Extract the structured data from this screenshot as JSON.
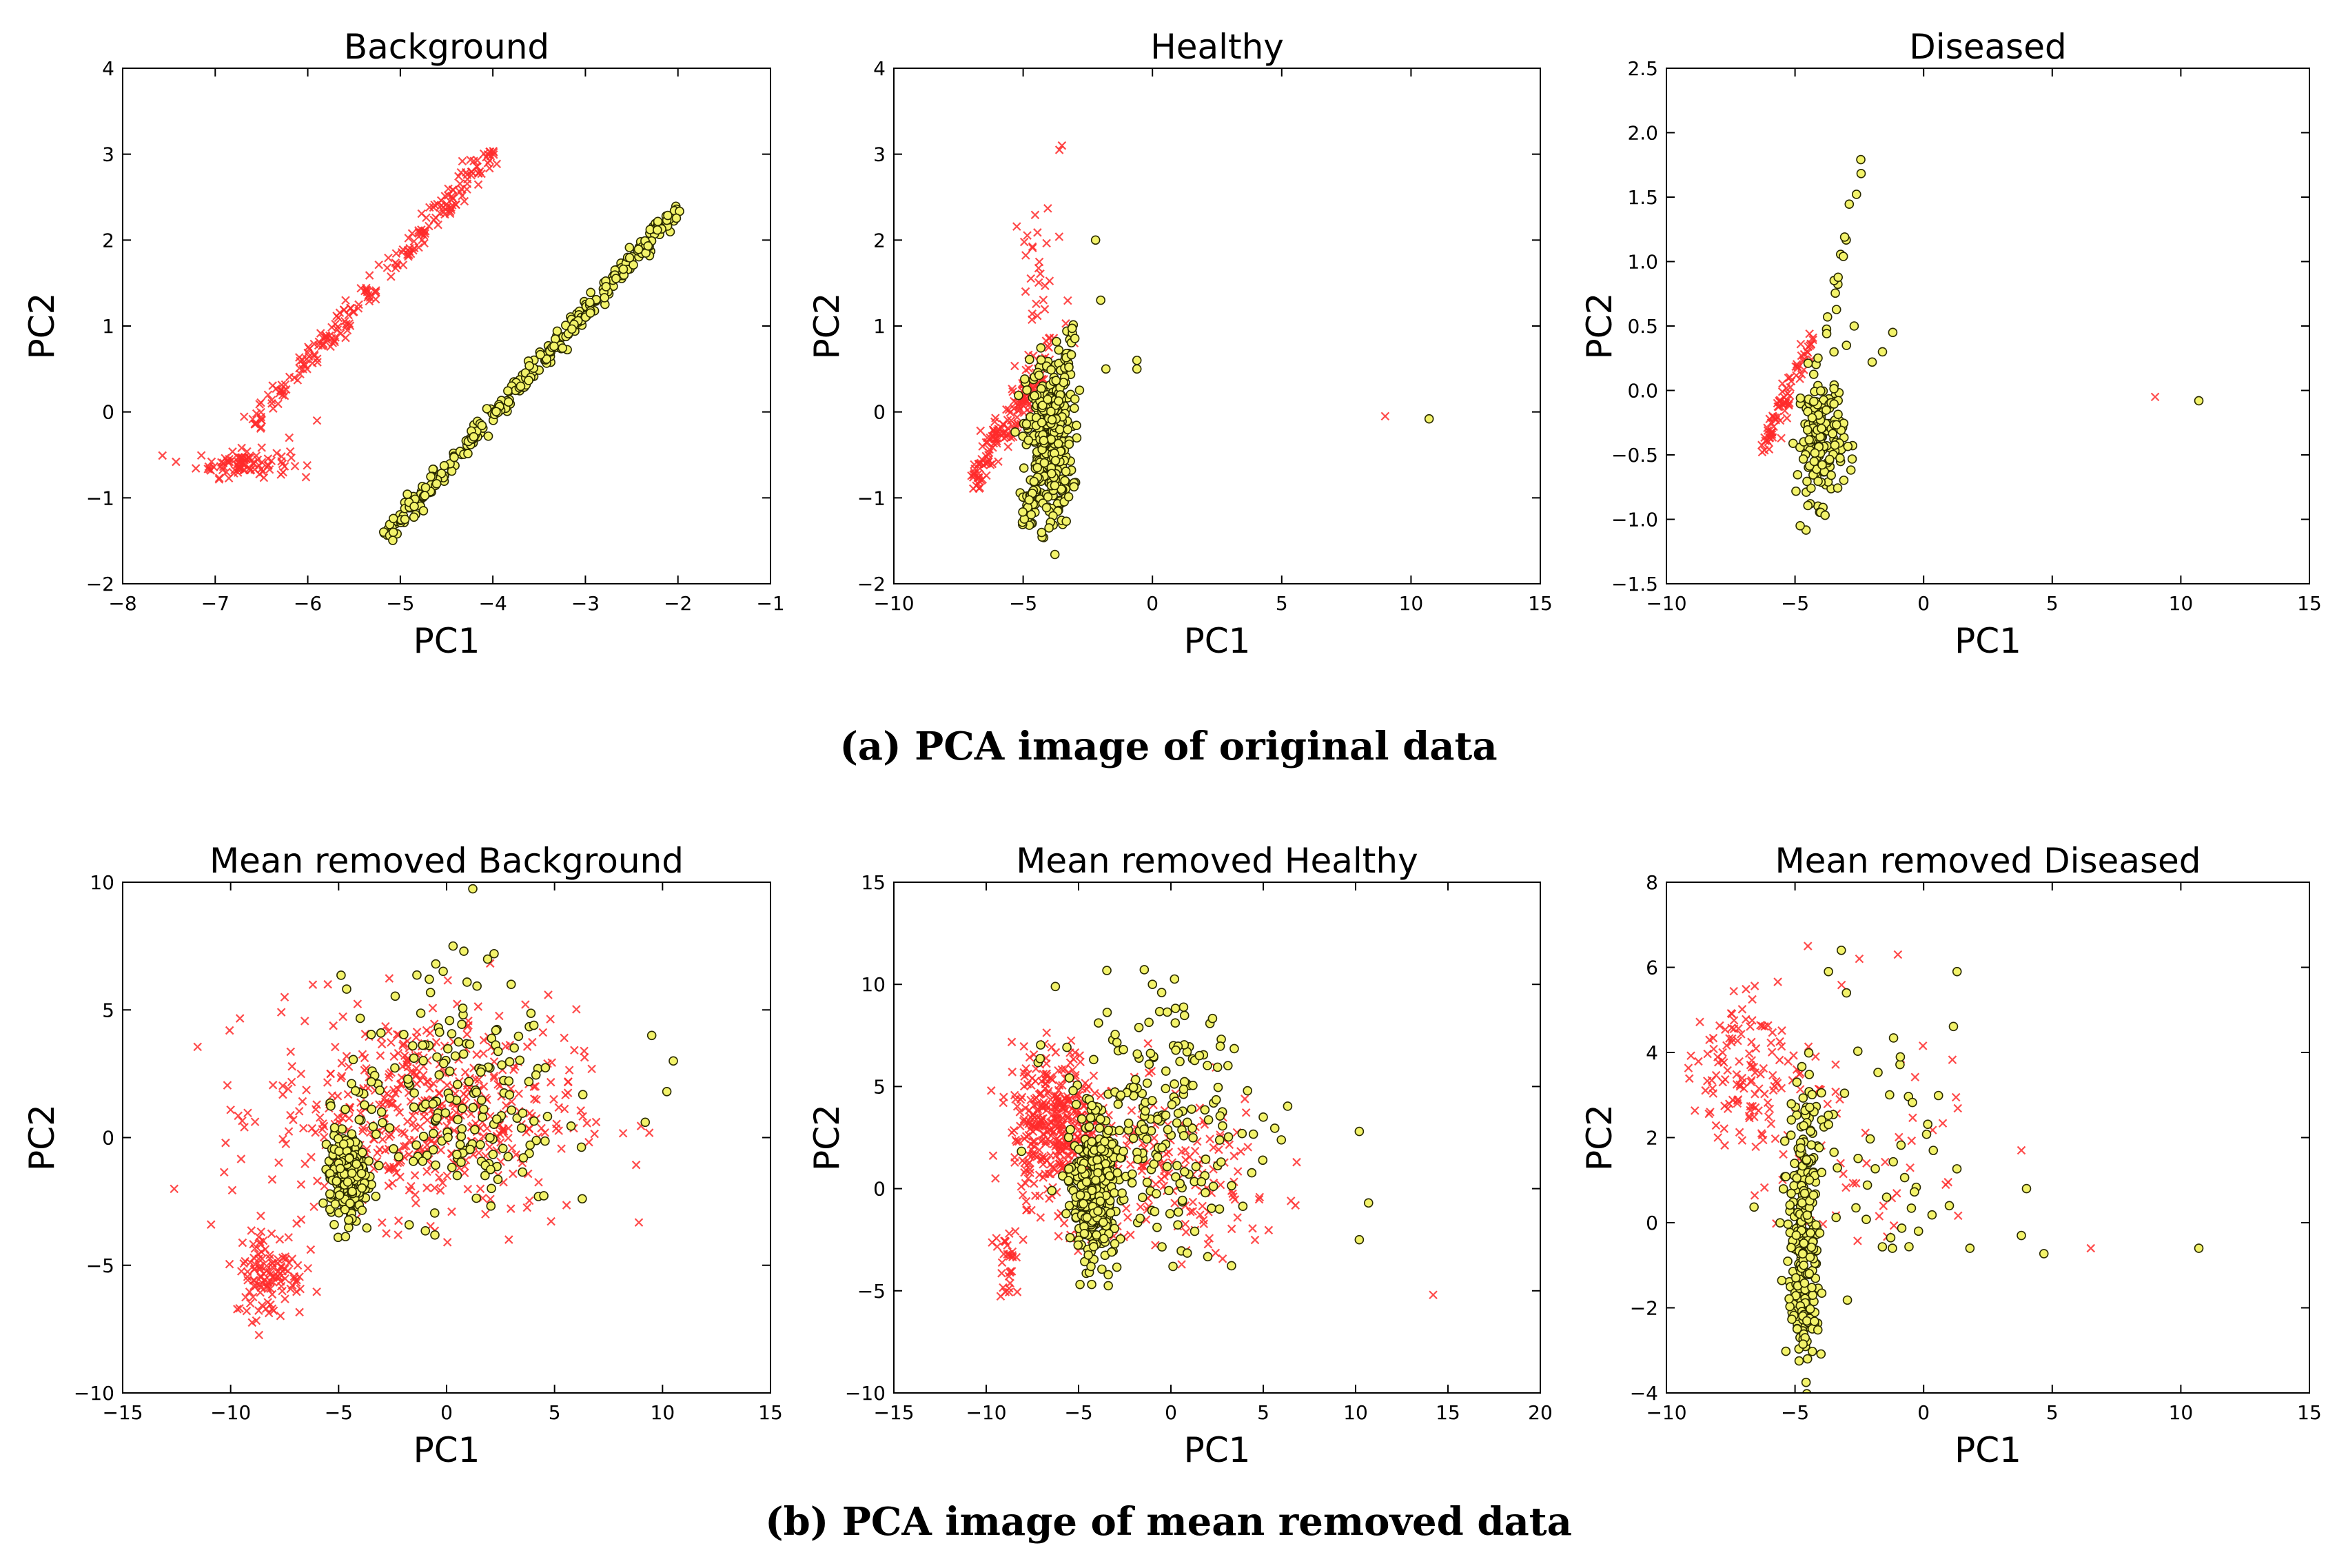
{
  "figure_captions": {
    "a": "(a) PCA image of original data",
    "b": "(b) PCA image of mean removed data"
  },
  "colors": {
    "background_marker": "#ff2a2a",
    "leaf_marker_fill": "#f3f36a",
    "leaf_marker_edge": "#2a2a00",
    "axes": "#000000"
  },
  "chart_data": [
    {
      "type": "scatter",
      "title": "Background",
      "xlabel": "PC1",
      "ylabel": "PC2",
      "xlim": [
        -8,
        -1
      ],
      "ylim": [
        -2,
        4
      ],
      "xticks": [
        -8,
        -7,
        -6,
        -5,
        -4,
        -3,
        -2,
        -1
      ],
      "yticks": [
        -2,
        -1,
        0,
        1,
        2,
        3,
        4
      ],
      "series": [
        {
          "name": "red-x",
          "marker": "x",
          "clusters": [
            {
              "kind": "line",
              "from": [
                -6.6,
                -0.15
              ],
              "to": [
                -4.0,
                3.05
              ],
              "n": 220,
              "spread": 0.06
            },
            {
              "kind": "blob",
              "center": [
                -6.7,
                -0.6
              ],
              "sd": [
                0.25,
                0.08
              ],
              "n": 90
            }
          ],
          "points": [
            [
              -5.9,
              -0.1
            ],
            [
              -6.2,
              -0.3
            ]
          ]
        },
        {
          "name": "yellow-circle",
          "marker": "o",
          "clusters": [
            {
              "kind": "line",
              "from": [
                -5.15,
                -1.45
              ],
              "to": [
                -2.0,
                2.38
              ],
              "n": 320,
              "spread": 0.045
            }
          ],
          "points": [
            [
              -4.85,
              -1.1
            ],
            [
              -4.75,
              -1.15
            ],
            [
              -4.95,
              -1.25
            ]
          ]
        }
      ]
    },
    {
      "type": "scatter",
      "title": "Healthy",
      "xlabel": "PC1",
      "ylabel": "PC2",
      "xlim": [
        -10,
        15
      ],
      "ylim": [
        -2,
        4
      ],
      "xticks": [
        -10,
        -5,
        0,
        5,
        10,
        15
      ],
      "yticks": [
        -2,
        -1,
        0,
        1,
        2,
        3,
        4
      ],
      "series": [
        {
          "name": "red-x",
          "marker": "x",
          "clusters": [
            {
              "kind": "line",
              "from": [
                -7.0,
                -0.8
              ],
              "to": [
                -4.2,
                0.5
              ],
              "n": 160,
              "spread": 0.12
            },
            {
              "kind": "blob",
              "center": [
                -4.3,
                1.3
              ],
              "sd": [
                0.6,
                0.8
              ],
              "n": 45
            }
          ],
          "points": [
            [
              9.0,
              -0.05
            ],
            [
              -3.6,
              3.05
            ],
            [
              -3.5,
              3.1
            ]
          ]
        },
        {
          "name": "yellow-circle",
          "marker": "o",
          "clusters": [
            {
              "kind": "blob",
              "center": [
                -4.0,
                -0.35
              ],
              "sd": [
                0.45,
                0.5
              ],
              "n": 320
            },
            {
              "kind": "line",
              "from": [
                -5.0,
                -1.35
              ],
              "to": [
                -3.0,
                1.0
              ],
              "n": 60,
              "spread": 0.08
            }
          ],
          "points": [
            [
              10.7,
              -0.08
            ],
            [
              -2.2,
              2.0
            ],
            [
              -2.0,
              1.3
            ],
            [
              -1.8,
              0.5
            ],
            [
              -0.6,
              0.6
            ],
            [
              -0.6,
              0.5
            ],
            [
              -4.0,
              -1.35
            ]
          ]
        }
      ]
    },
    {
      "type": "scatter",
      "title": "Diseased",
      "xlabel": "PC1",
      "ylabel": "PC2",
      "xlim": [
        -10,
        15
      ],
      "ylim": [
        -1.5,
        2.5
      ],
      "xticks": [
        -10,
        -5,
        0,
        5,
        10,
        15
      ],
      "yticks": [
        -1.5,
        -1.0,
        -0.5,
        0.0,
        0.5,
        1.0,
        1.5,
        2.0,
        2.5
      ],
      "series": [
        {
          "name": "red-x",
          "marker": "x",
          "clusters": [
            {
              "kind": "line",
              "from": [
                -6.3,
                -0.45
              ],
              "to": [
                -4.3,
                0.4
              ],
              "n": 80,
              "spread": 0.06
            }
          ],
          "points": [
            [
              9.0,
              -0.05
            ]
          ]
        },
        {
          "name": "yellow-circle",
          "marker": "o",
          "clusters": [
            {
              "kind": "blob",
              "center": [
                -4.0,
                -0.35
              ],
              "sd": [
                0.45,
                0.25
              ],
              "n": 170
            },
            {
              "kind": "line",
              "from": [
                -3.8,
                0.4
              ],
              "to": [
                -2.3,
                1.85
              ],
              "n": 16,
              "spread": 0.05
            }
          ],
          "points": [
            [
              10.7,
              -0.08
            ],
            [
              -4.8,
              -1.05
            ],
            [
              -1.2,
              0.45
            ],
            [
              -1.6,
              0.3
            ],
            [
              -2.7,
              0.5
            ],
            [
              -3.0,
              0.35
            ],
            [
              -2.0,
              0.22
            ]
          ]
        }
      ]
    },
    {
      "type": "scatter",
      "title": "Mean removed Background",
      "xlabel": "PC1",
      "ylabel": "PC2",
      "xlim": [
        -15,
        15
      ],
      "ylim": [
        -10,
        10
      ],
      "xticks": [
        -15,
        -10,
        -5,
        0,
        5,
        10,
        15
      ],
      "yticks": [
        -10,
        -5,
        0,
        5,
        10
      ],
      "series": [
        {
          "name": "red-x",
          "marker": "x",
          "clusters": [
            {
              "kind": "blob",
              "center": [
                -1.0,
                1.0
              ],
              "sd": [
                3.5,
                2.0
              ],
              "n": 520
            },
            {
              "kind": "blob",
              "center": [
                -8.2,
                -5.3
              ],
              "sd": [
                0.8,
                0.9
              ],
              "n": 120
            }
          ],
          "points": [
            [
              -7.5,
              5.5
            ],
            [
              -5.5,
              6.0
            ],
            [
              1.8,
              -3.0
            ]
          ]
        },
        {
          "name": "yellow-circle",
          "marker": "o",
          "clusters": [
            {
              "kind": "blob",
              "center": [
                -4.6,
                -1.5
              ],
              "sd": [
                0.4,
                0.8
              ],
              "n": 320
            },
            {
              "kind": "blob",
              "center": [
                0.3,
                1.5
              ],
              "sd": [
                2.5,
                2.3
              ],
              "n": 190
            }
          ],
          "points": [
            [
              0.3,
              7.5
            ],
            [
              0.8,
              7.3
            ],
            [
              9.5,
              4.0
            ],
            [
              10.5,
              3.0
            ],
            [
              10.2,
              1.8
            ],
            [
              9.2,
              0.6
            ],
            [
              -0.5,
              6.8
            ],
            [
              -0.8,
              6.2
            ],
            [
              2.2,
              7.2
            ]
          ]
        }
      ]
    },
    {
      "type": "scatter",
      "title": "Mean removed Healthy",
      "xlabel": "PC1",
      "ylabel": "PC2",
      "xlim": [
        -15,
        20
      ],
      "ylim": [
        -10,
        15
      ],
      "xticks": [
        -15,
        -10,
        -5,
        0,
        5,
        10,
        15,
        20
      ],
      "yticks": [
        -10,
        -5,
        0,
        5,
        10,
        15
      ],
      "series": [
        {
          "name": "red-x",
          "marker": "x",
          "clusters": [
            {
              "kind": "blob",
              "center": [
                -6.2,
                3.2
              ],
              "sd": [
                1.2,
                1.8
              ],
              "n": 380
            },
            {
              "kind": "blob",
              "center": [
                0.0,
                0.5
              ],
              "sd": [
                3.0,
                2.0
              ],
              "n": 180
            },
            {
              "kind": "line",
              "from": [
                -9.0,
                -2.0
              ],
              "to": [
                -8.6,
                -5.2
              ],
              "n": 30,
              "spread": 0.3
            }
          ],
          "points": [
            [
              6.5,
              -0.6
            ],
            [
              14.2,
              -5.2
            ],
            [
              -9.5,
              0.5
            ],
            [
              -8.0,
              -2.5
            ]
          ]
        },
        {
          "name": "yellow-circle",
          "marker": "o",
          "clusters": [
            {
              "kind": "blob",
              "center": [
                -4.2,
                0.0
              ],
              "sd": [
                0.55,
                1.7
              ],
              "n": 360
            },
            {
              "kind": "blob",
              "center": [
                -0.8,
                3.0
              ],
              "sd": [
                2.6,
                3.0
              ],
              "n": 210
            }
          ],
          "points": [
            [
              10.7,
              -0.7
            ],
            [
              10.2,
              2.8
            ],
            [
              10.2,
              -2.5
            ],
            [
              -1.0,
              10.0
            ],
            [
              -0.5,
              9.6
            ],
            [
              5.0,
              3.5
            ]
          ]
        }
      ]
    },
    {
      "type": "scatter",
      "title": "Mean removed Diseased",
      "xlabel": "PC1",
      "ylabel": "PC2",
      "xlim": [
        -10,
        15
      ],
      "ylim": [
        -4,
        8
      ],
      "xticks": [
        -10,
        -5,
        0,
        5,
        10,
        15
      ],
      "yticks": [
        -4,
        -2,
        0,
        2,
        4,
        6,
        8
      ],
      "series": [
        {
          "name": "red-x",
          "marker": "x",
          "clusters": [
            {
              "kind": "blob",
              "center": [
                -7.3,
                3.7
              ],
              "sd": [
                0.8,
                0.9
              ],
              "n": 90
            },
            {
              "kind": "blob",
              "center": [
                -5.5,
                3.2
              ],
              "sd": [
                1.2,
                1.0
              ],
              "n": 50
            },
            {
              "kind": "blob",
              "center": [
                -1.5,
                1.8
              ],
              "sd": [
                2.0,
                1.4
              ],
              "n": 40
            }
          ],
          "points": [
            [
              6.5,
              -0.6
            ],
            [
              -4.5,
              6.5
            ],
            [
              -2.5,
              6.2
            ],
            [
              -1.0,
              6.3
            ],
            [
              3.8,
              1.7
            ],
            [
              -8.3,
              2.6
            ],
            [
              -8.0,
              2.0
            ]
          ]
        },
        {
          "name": "yellow-circle",
          "marker": "o",
          "clusters": [
            {
              "kind": "blob",
              "center": [
                -4.7,
                -0.3
              ],
              "sd": [
                0.3,
                1.6
              ],
              "n": 220
            },
            {
              "kind": "line",
              "from": [
                -4.5,
                -3.0
              ],
              "to": [
                -4.2,
                2.8
              ],
              "n": 40,
              "spread": 0.2
            },
            {
              "kind": "blob",
              "center": [
                -2.0,
                1.3
              ],
              "sd": [
                2.2,
                1.5
              ],
              "n": 50
            }
          ],
          "points": [
            [
              10.7,
              -0.6
            ],
            [
              1.3,
              5.9
            ],
            [
              -3.2,
              6.4
            ],
            [
              -3.7,
              5.9
            ],
            [
              -3.0,
              5.4
            ],
            [
              3.8,
              -0.3
            ],
            [
              4.0,
              0.8
            ],
            [
              1.8,
              -0.6
            ],
            [
              1.0,
              0.4
            ],
            [
              -0.2,
              -0.2
            ]
          ]
        }
      ]
    }
  ]
}
